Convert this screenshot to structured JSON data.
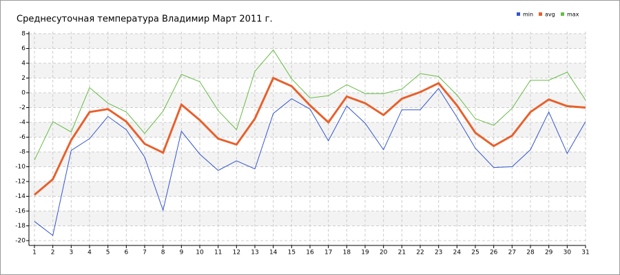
{
  "chart_data": {
    "type": "line",
    "title": "Среднесуточная температура Владимир  Март 2011 г.",
    "x": [
      1,
      2,
      3,
      4,
      5,
      6,
      7,
      8,
      9,
      10,
      11,
      12,
      13,
      14,
      15,
      16,
      17,
      18,
      19,
      20,
      21,
      22,
      23,
      24,
      25,
      26,
      27,
      28,
      29,
      30,
      31
    ],
    "xlim": [
      1,
      31
    ],
    "xticks": [
      1,
      2,
      3,
      4,
      5,
      6,
      7,
      8,
      9,
      10,
      11,
      12,
      13,
      14,
      15,
      16,
      17,
      18,
      19,
      20,
      21,
      22,
      23,
      24,
      25,
      26,
      27,
      28,
      29,
      30,
      31
    ],
    "ylim": [
      -20,
      8
    ],
    "yticks": [
      -20,
      -18,
      -16,
      -14,
      -12,
      -10,
      -8,
      -6,
      -4,
      -2,
      0,
      2,
      4,
      6,
      8
    ],
    "grid": true,
    "series": [
      {
        "name": "min",
        "color": "#3355cc",
        "values": [
          -17.4,
          -19.3,
          -7.8,
          -6.2,
          -3.2,
          -5,
          -8.7,
          -15.9,
          -5.2,
          -8.3,
          -10.5,
          -9.2,
          -10.3,
          -2.8,
          -0.8,
          -2.2,
          -6.5,
          -1.8,
          -4.1,
          -7.7,
          -2.3,
          -2.3,
          0.6,
          -3.3,
          -7.5,
          -10.1,
          -10,
          -7.7,
          -2.6,
          -8.2,
          -3.9
        ]
      },
      {
        "name": "avg",
        "color": "#e8602c",
        "values": [
          -13.8,
          -11.7,
          -6.4,
          -2.6,
          -2.2,
          -3.9,
          -6.9,
          -8.1,
          -1.6,
          -3.7,
          -6.2,
          -7,
          -3.5,
          2,
          0.9,
          -1.7,
          -4,
          -0.5,
          -1.4,
          -3,
          -0.8,
          0.1,
          1.3,
          -1.7,
          -5.4,
          -7.2,
          -5.8,
          -2.6,
          -0.9,
          -1.8,
          -2
        ]
      },
      {
        "name": "max",
        "color": "#66bb44",
        "values": [
          -9.1,
          -3.9,
          -5.3,
          0.7,
          -1.4,
          -2.6,
          -5.5,
          -2.5,
          2.5,
          1.5,
          -2.4,
          -5,
          2.9,
          5.8,
          1.9,
          -0.7,
          -0.4,
          1.1,
          -0.1,
          -0.1,
          0.5,
          2.6,
          2.2,
          -0.3,
          -3.5,
          -4.4,
          -2.1,
          1.7,
          1.7,
          2.8,
          -1
        ]
      }
    ]
  }
}
